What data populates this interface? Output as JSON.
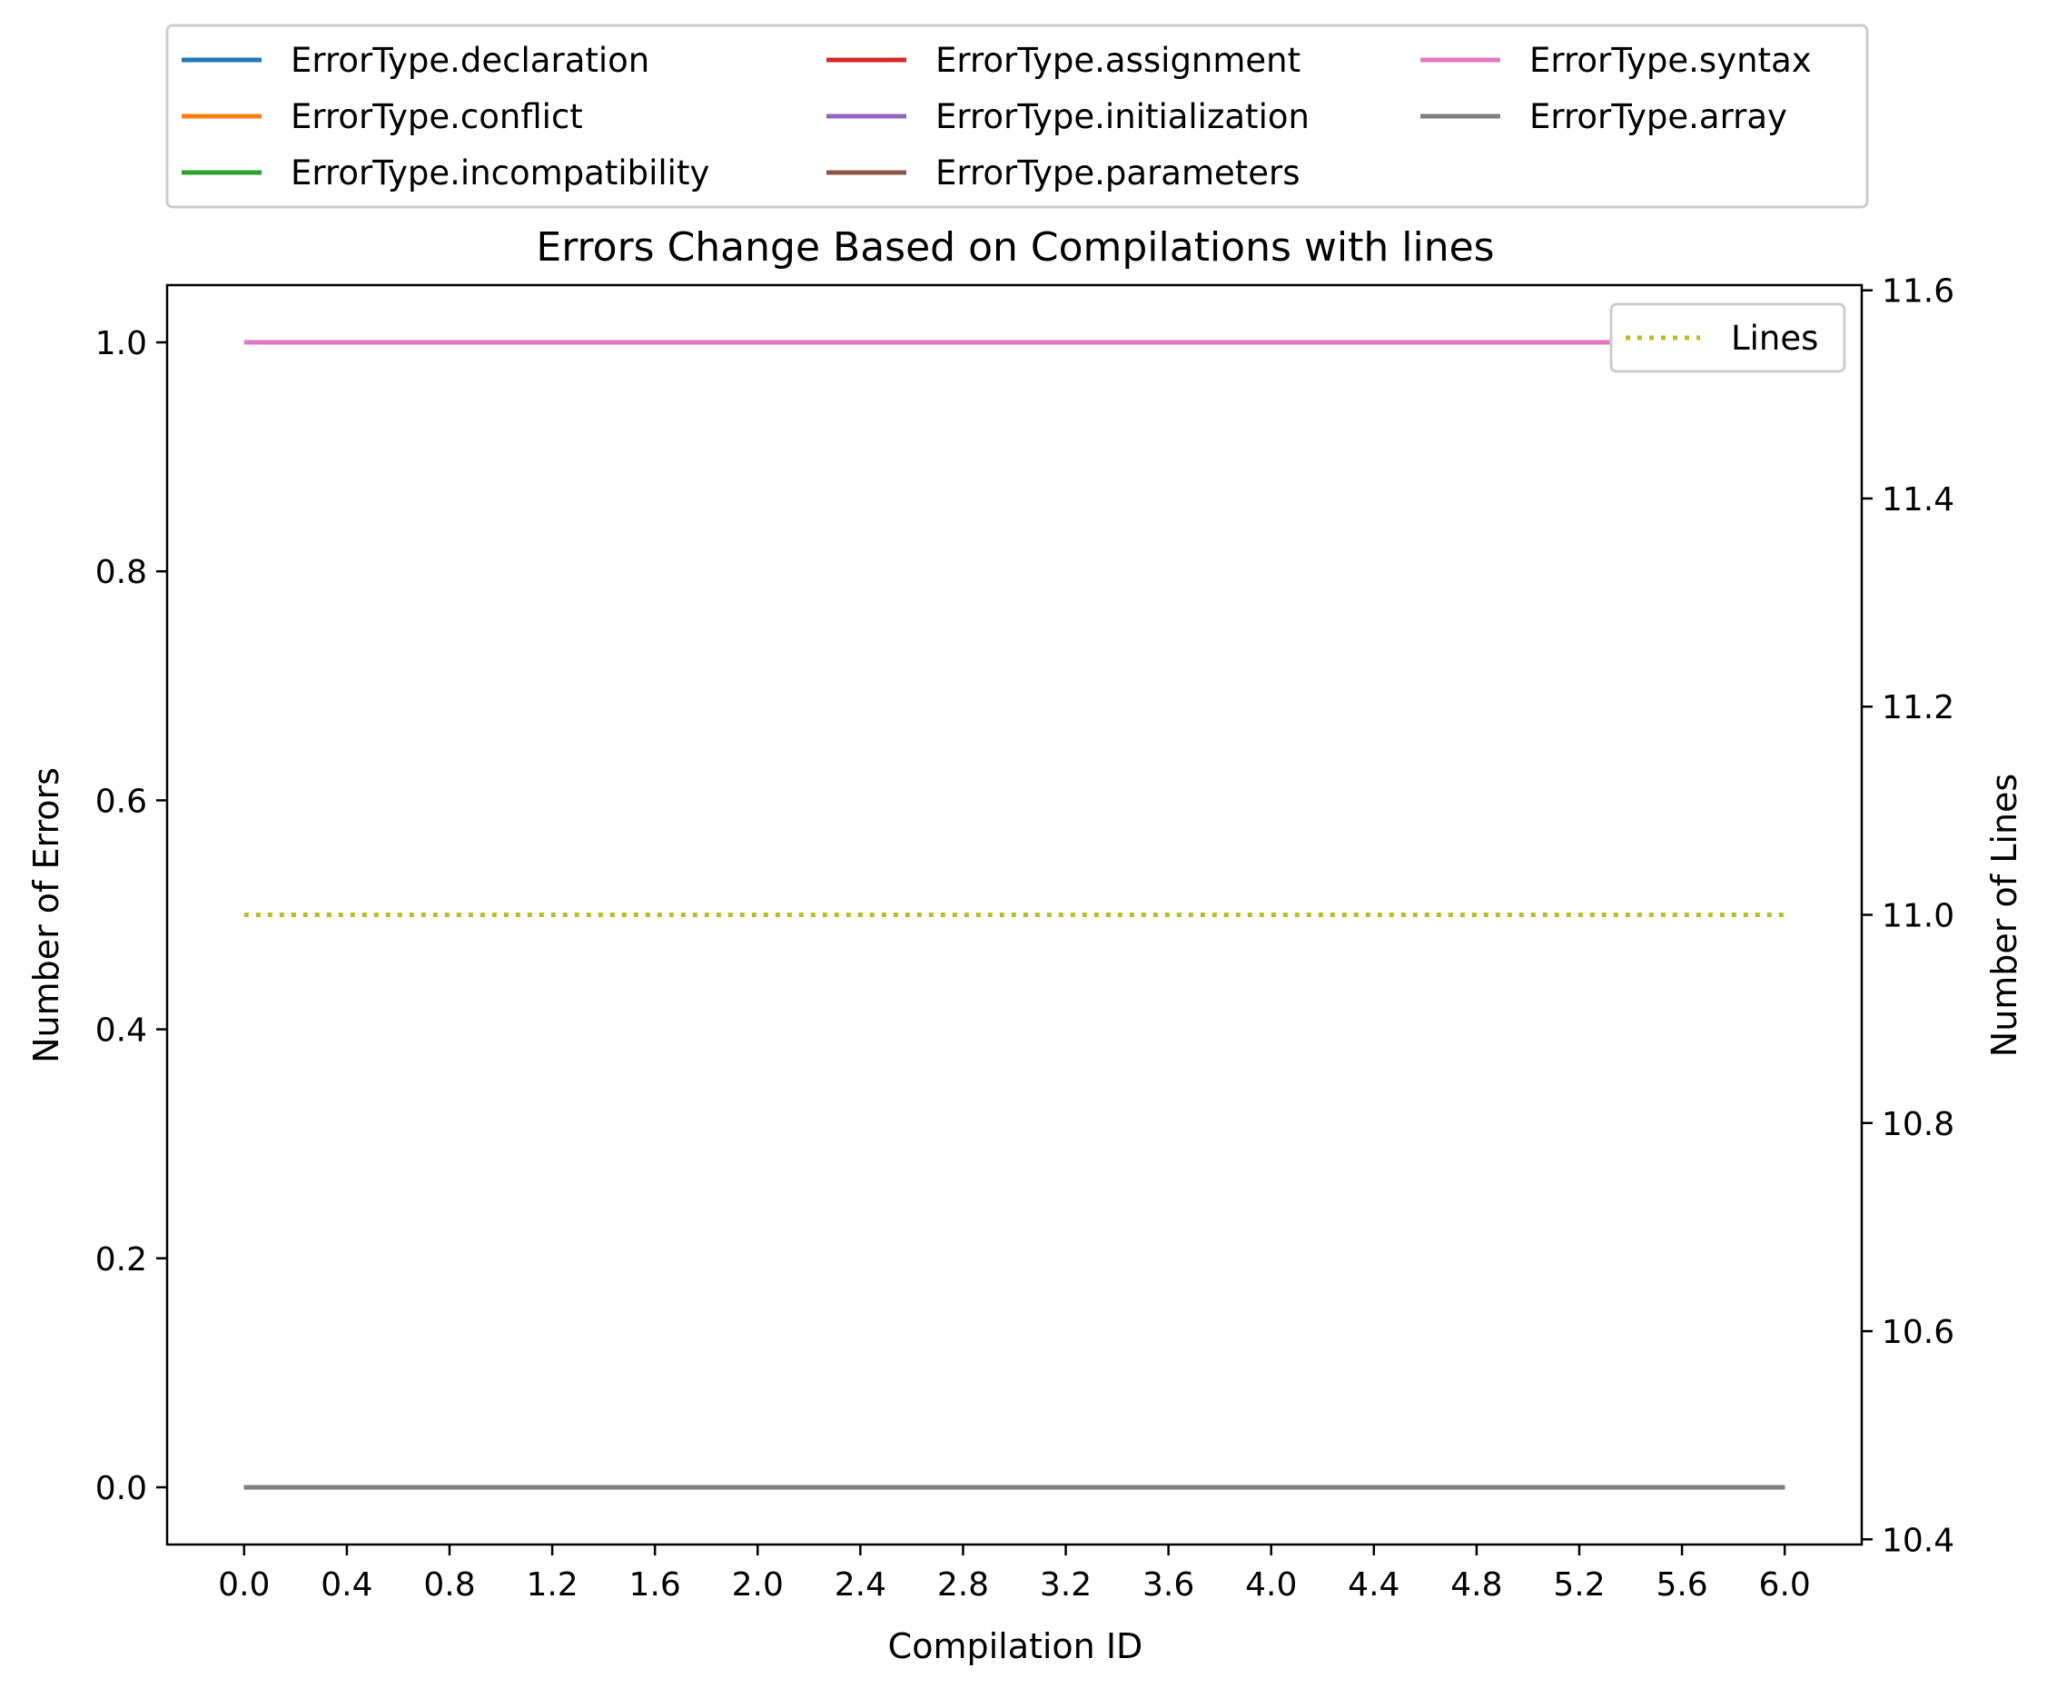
{
  "chart_data": {
    "type": "line",
    "title": "Errors Change Based on Compilations with lines",
    "xlabel": "Compilation ID",
    "ylabel": "Number of Errors",
    "y2label": "Number of Lines",
    "xlim": [
      -0.3,
      6.3
    ],
    "ylim": [
      -0.05,
      1.05
    ],
    "y2lim": [
      10.395,
      11.605
    ],
    "xticks": [
      "0.0",
      "0.4",
      "0.8",
      "1.2",
      "1.6",
      "2.0",
      "2.4",
      "2.8",
      "3.2",
      "3.6",
      "4.0",
      "4.4",
      "4.8",
      "5.2",
      "5.6",
      "6.0"
    ],
    "yticks": [
      "0.0",
      "0.2",
      "0.4",
      "0.6",
      "0.8",
      "1.0"
    ],
    "y2ticks": [
      "10.4",
      "10.6",
      "10.8",
      "11.0",
      "11.2",
      "11.4",
      "11.6"
    ],
    "x": [
      0,
      1,
      2,
      3,
      4,
      5,
      6
    ],
    "legend_position": "top, outside, 3 columns",
    "series": [
      {
        "name": "ErrorType.declaration",
        "color": "#1f77b4",
        "values": [
          0,
          0,
          0,
          0,
          0,
          0,
          0
        ]
      },
      {
        "name": "ErrorType.conflict",
        "color": "#ff7f0e",
        "values": [
          0,
          0,
          0,
          0,
          0,
          0,
          0
        ]
      },
      {
        "name": "ErrorType.incompatibility",
        "color": "#2ca02c",
        "values": [
          0,
          0,
          0,
          0,
          0,
          0,
          0
        ]
      },
      {
        "name": "ErrorType.assignment",
        "color": "#d62728",
        "values": [
          0,
          0,
          0,
          0,
          0,
          0,
          0
        ]
      },
      {
        "name": "ErrorType.initialization",
        "color": "#9467bd",
        "values": [
          0,
          0,
          0,
          0,
          0,
          0,
          0
        ]
      },
      {
        "name": "ErrorType.parameters",
        "color": "#8c564b",
        "values": [
          0,
          0,
          0,
          0,
          0,
          0,
          0
        ]
      },
      {
        "name": "ErrorType.syntax",
        "color": "#e377c2",
        "values": [
          1,
          1,
          1,
          1,
          1,
          1,
          1
        ]
      },
      {
        "name": "ErrorType.array",
        "color": "#7f7f7f",
        "values": [
          0,
          0,
          0,
          0,
          0,
          0,
          0
        ]
      }
    ],
    "secondary_series": {
      "name": "Lines",
      "color": "#bcbd22",
      "style": "dotted",
      "axis": "right",
      "values": [
        11,
        11,
        11,
        11,
        11,
        11,
        11
      ]
    }
  }
}
